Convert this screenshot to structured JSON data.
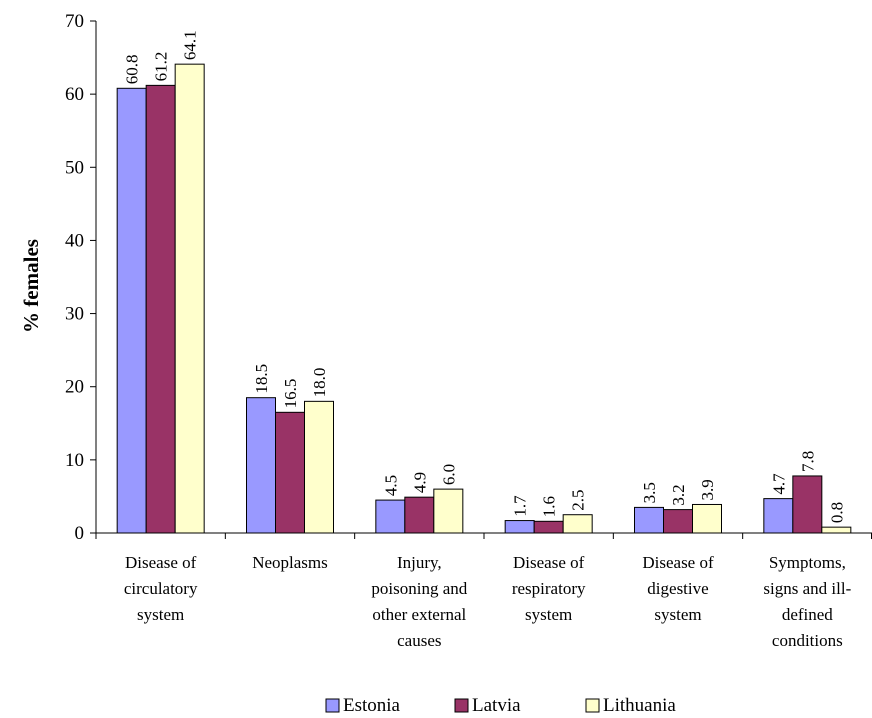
{
  "chart_data": {
    "type": "bar",
    "title": "",
    "xlabel": "",
    "ylabel": "% females",
    "ylim": [
      0,
      70
    ],
    "yticks": [
      0,
      10,
      20,
      30,
      40,
      50,
      60,
      70
    ],
    "grid": false,
    "legend_position": "bottom",
    "categories": [
      [
        "Disease of",
        "circulatory",
        "system"
      ],
      [
        "Neoplasms"
      ],
      [
        "Injury,",
        "poisoning and",
        "other external",
        "causes"
      ],
      [
        "Disease of",
        "respiratory",
        "system"
      ],
      [
        "Disease of",
        "digestive",
        "system"
      ],
      [
        "Symptoms,",
        "signs and ill-",
        "defined",
        "conditions"
      ]
    ],
    "series": [
      {
        "name": "Estonia",
        "color": "#9999ff",
        "values": [
          60.8,
          18.5,
          4.5,
          1.7,
          3.5,
          4.7
        ],
        "labels": [
          "60.8",
          "18.5",
          "4.5",
          "1.7",
          "3.5",
          "4.7"
        ]
      },
      {
        "name": "Latvia",
        "color": "#993366",
        "values": [
          61.2,
          16.5,
          4.9,
          1.6,
          3.2,
          7.8
        ],
        "labels": [
          "61.2",
          "16.5",
          "4.9",
          "1.6",
          "3.2",
          "7.8"
        ]
      },
      {
        "name": "Lithuania",
        "color": "#ffffcc",
        "values": [
          64.1,
          18.0,
          6.0,
          2.5,
          3.9,
          0.8
        ],
        "labels": [
          "64.1",
          "18.0",
          "6.0",
          "2.5",
          "3.9",
          "0.8"
        ]
      }
    ]
  }
}
